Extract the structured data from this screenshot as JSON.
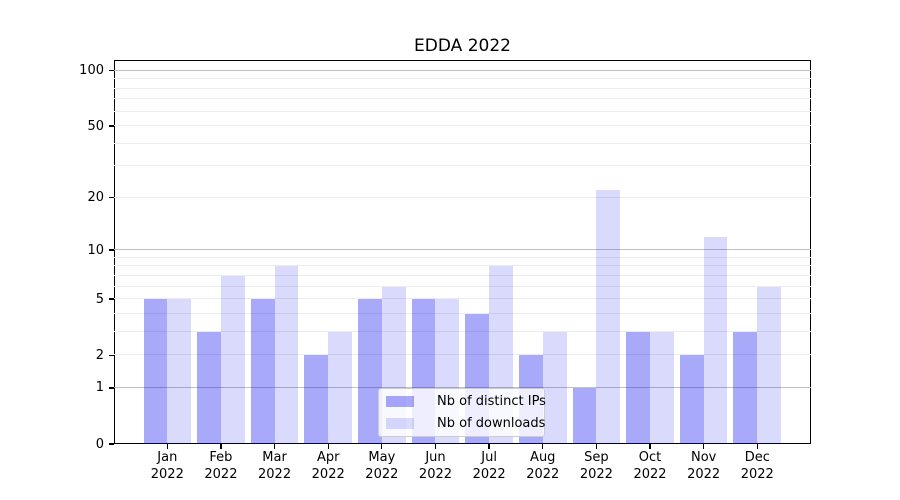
{
  "chart_data": {
    "type": "bar",
    "title": "EDDA 2022",
    "categories": [
      "Jan",
      "Feb",
      "Mar",
      "Apr",
      "May",
      "Jun",
      "Jul",
      "Aug",
      "Sep",
      "Oct",
      "Nov",
      "Dec"
    ],
    "x_year": "2022",
    "series": [
      {
        "name": "Nb of distinct IPs",
        "values": [
          5,
          3,
          5,
          2,
          5,
          5,
          4,
          2,
          1,
          3,
          2,
          3
        ],
        "color": "rgba(10,10,242,0.35)"
      },
      {
        "name": "Nb of downloads",
        "values": [
          5,
          7,
          8,
          3,
          6,
          5,
          8,
          3,
          22,
          3,
          12,
          6
        ],
        "color": "rgba(10,10,242,0.15)"
      }
    ],
    "yscale": "log1p",
    "ylim": [
      0,
      114.4
    ],
    "yticks": [
      {
        "value": 0,
        "label": "0"
      },
      {
        "value": 1,
        "label": "1"
      },
      {
        "value": 2,
        "label": "2"
      },
      {
        "value": 5,
        "label": "5"
      },
      {
        "value": 10,
        "label": "10"
      },
      {
        "value": 20,
        "label": "20"
      },
      {
        "value": 50,
        "label": "50"
      },
      {
        "value": 100,
        "label": "100"
      }
    ],
    "grid": {
      "major_values": [
        1,
        10,
        100
      ],
      "minor_values": [
        2,
        3,
        4,
        5,
        6,
        7,
        8,
        9,
        20,
        30,
        40,
        50,
        60,
        70,
        80,
        90
      ],
      "major_color": "#c0c0c0",
      "minor_color": "#ececec"
    },
    "legend_position": "lower center",
    "xlabel": "",
    "ylabel": ""
  }
}
